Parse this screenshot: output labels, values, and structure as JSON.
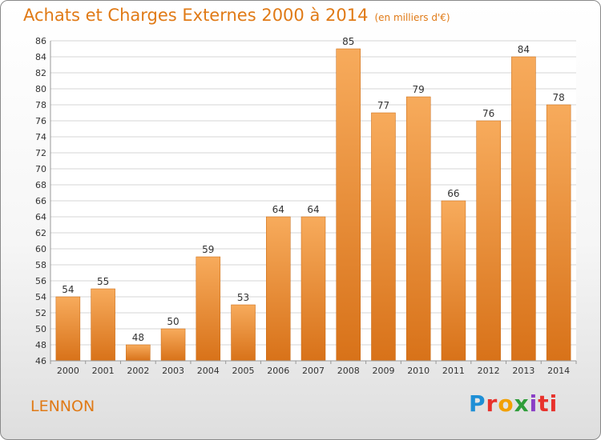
{
  "header": {
    "title": "Achats et Charges Externes 2000 à 2014",
    "subtitle": "(en milliers d'€)"
  },
  "location": "LENNON",
  "logo": {
    "text": "Proxiti",
    "letters": [
      "P",
      "r",
      "o",
      "x",
      "i",
      "ti"
    ]
  },
  "colors": {
    "accent": "#e07a16",
    "bar_light": "#f7ab5c",
    "bar_dark": "#d87219",
    "grid": "#d4d4d4",
    "axis_text": "#333333"
  },
  "chart_data": {
    "type": "bar",
    "title": "Achats et Charges Externes 2000 à 2014",
    "subtitle": "(en milliers d'€)",
    "categories": [
      "2000",
      "2001",
      "2002",
      "2003",
      "2004",
      "2005",
      "2006",
      "2007",
      "2008",
      "2009",
      "2010",
      "2011",
      "2012",
      "2013",
      "2014"
    ],
    "values": [
      54,
      55,
      48,
      50,
      59,
      53,
      64,
      64,
      85,
      77,
      79,
      66,
      76,
      84,
      78
    ],
    "ylim": [
      46,
      86
    ],
    "ytick_step": 2,
    "grid": true,
    "xlabel": "",
    "ylabel": ""
  }
}
